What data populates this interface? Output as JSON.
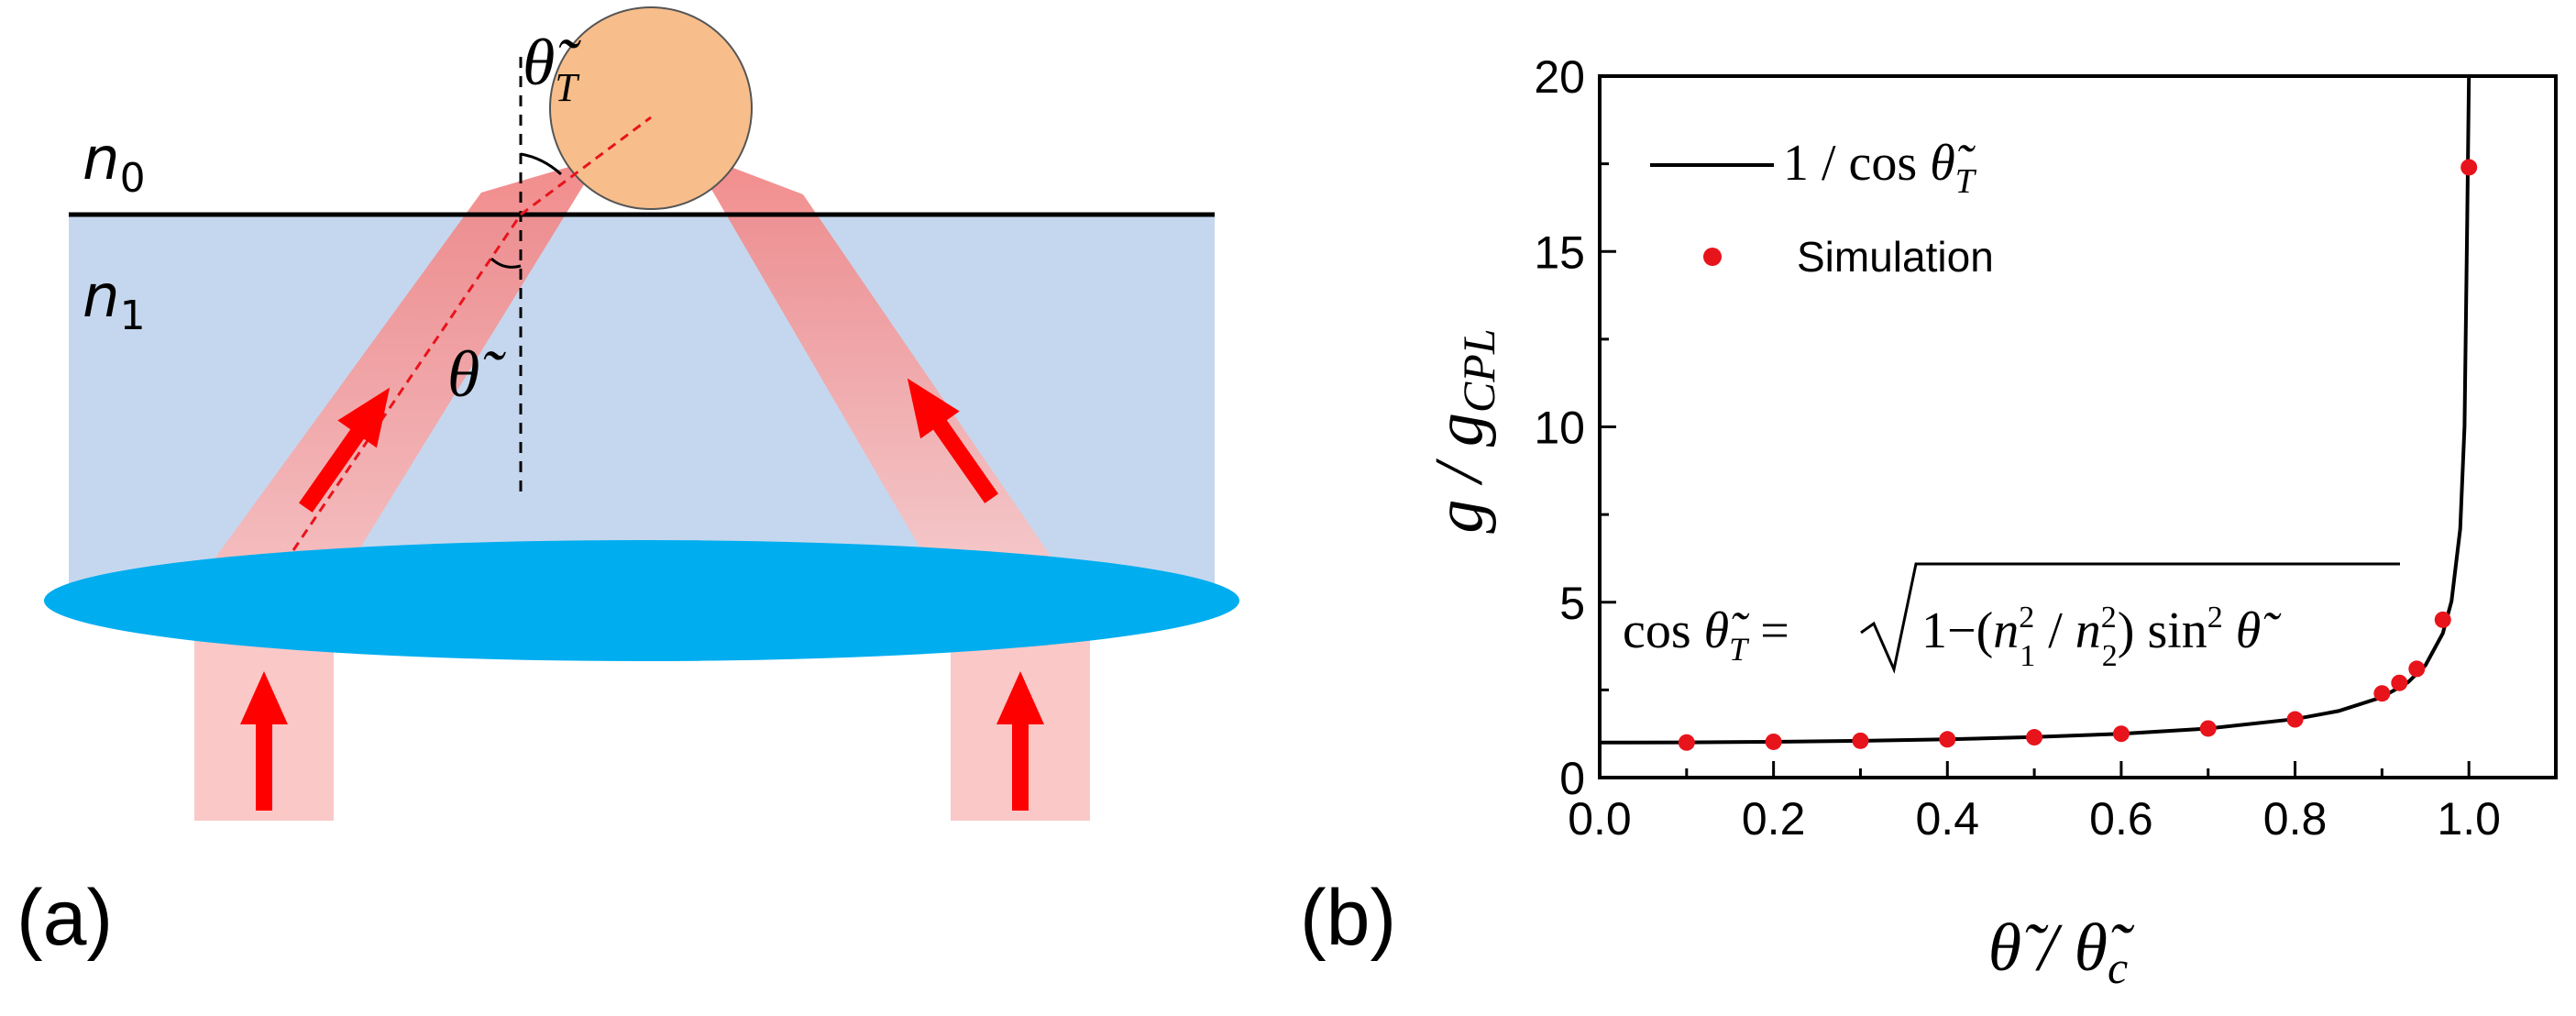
{
  "panel_a": {
    "label": "(a)",
    "n0_base": "n",
    "n0_sub": "0",
    "n1_base": "n",
    "n1_sub": "1",
    "theta_label": "θ̃",
    "theta_t_base": "θ̃",
    "theta_t_sub": "T",
    "colors": {
      "medium": "#c5d7ee",
      "lens": "#00adef",
      "particle": "#f7be8b",
      "beam": "#f28b8b",
      "arrow": "#ff0000"
    }
  },
  "panel_b": {
    "label": "(b)",
    "equation": {
      "lhs": "cos θ̃",
      "lhs_sub": "T",
      "rhs": "= √1−(n₁² / n₂²) sin² θ̃"
    }
  },
  "chart_data": {
    "type": "scatter",
    "xlabel": "θ̃ / θ̃c",
    "ylabel": "g / gCPL",
    "xlim": [
      0.0,
      1.1
    ],
    "ylim": [
      0,
      20
    ],
    "x_ticks": [
      "0.0",
      "0.2",
      "0.4",
      "0.6",
      "0.8",
      "1.0"
    ],
    "y_ticks": [
      "0",
      "5",
      "10",
      "15",
      "20"
    ],
    "legend_position": "top-left",
    "series": [
      {
        "name": "1 / cos θ̃T",
        "kind": "line",
        "color": "#000000",
        "function": "1/sqrt(1 - x^2 * n_ratio)",
        "x": [
          0.0,
          0.1,
          0.2,
          0.3,
          0.4,
          0.5,
          0.6,
          0.7,
          0.8,
          0.85,
          0.9,
          0.93,
          0.95,
          0.97,
          0.98,
          0.99,
          0.995,
          0.998,
          1.0
        ],
        "y": [
          1.0,
          1.005,
          1.02,
          1.048,
          1.091,
          1.155,
          1.25,
          1.4,
          1.667,
          1.898,
          2.294,
          2.72,
          3.203,
          4.113,
          5.025,
          7.089,
          10.01,
          15.81,
          20.0
        ]
      },
      {
        "name": "Simulation",
        "kind": "scatter",
        "color": "#e8141c",
        "x": [
          0.1,
          0.2,
          0.3,
          0.4,
          0.5,
          0.6,
          0.7,
          0.8,
          0.9,
          0.92,
          0.94,
          0.97,
          1.0
        ],
        "y": [
          1.0,
          1.02,
          1.05,
          1.09,
          1.15,
          1.25,
          1.4,
          1.66,
          2.4,
          2.7,
          3.1,
          4.5,
          17.4
        ]
      }
    ]
  }
}
